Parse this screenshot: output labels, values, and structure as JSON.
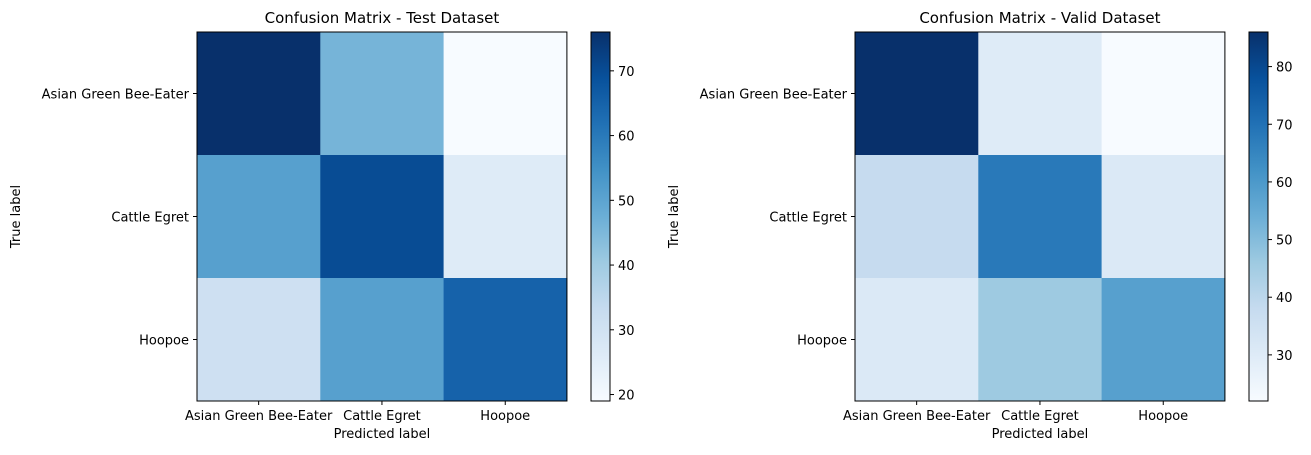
{
  "chart_data": [
    {
      "type": "heatmap",
      "title": "Confusion Matrix - Test Dataset",
      "xlabel": "Predicted label",
      "ylabel": "True label",
      "x_categories": [
        "Asian Green Bee-Eater",
        "Cattle Egret",
        "Hoopoe"
      ],
      "y_categories": [
        "Asian Green Bee-Eater",
        "Cattle Egret",
        "Hoopoe"
      ],
      "values": [
        [
          76,
          46,
          19
        ],
        [
          51,
          70,
          26
        ],
        [
          31,
          51,
          65
        ]
      ],
      "colormap": "Blues",
      "colorbar": {
        "min": 19,
        "max": 76,
        "ticks": [
          20,
          30,
          40,
          50,
          60,
          70
        ]
      }
    },
    {
      "type": "heatmap",
      "title": "Confusion Matrix - Valid Dataset",
      "xlabel": "Predicted label",
      "ylabel": "True label",
      "x_categories": [
        "Asian Green Bee-Eater",
        "Cattle Egret",
        "Hoopoe"
      ],
      "y_categories": [
        "Asian Green Bee-Eater",
        "Cattle Egret",
        "Hoopoe"
      ],
      "values": [
        [
          86,
          30,
          22
        ],
        [
          38,
          68,
          31
        ],
        [
          31,
          46,
          58
        ]
      ],
      "colormap": "Blues",
      "colorbar": {
        "min": 22,
        "max": 86,
        "ticks": [
          30,
          40,
          50,
          60,
          70,
          80
        ]
      }
    }
  ],
  "colors": {
    "blues_stops": [
      "#f7fbff",
      "#deebf7",
      "#c6dbef",
      "#9ecae1",
      "#6baed6",
      "#4292c6",
      "#2171b5",
      "#08519c",
      "#08306b"
    ]
  }
}
